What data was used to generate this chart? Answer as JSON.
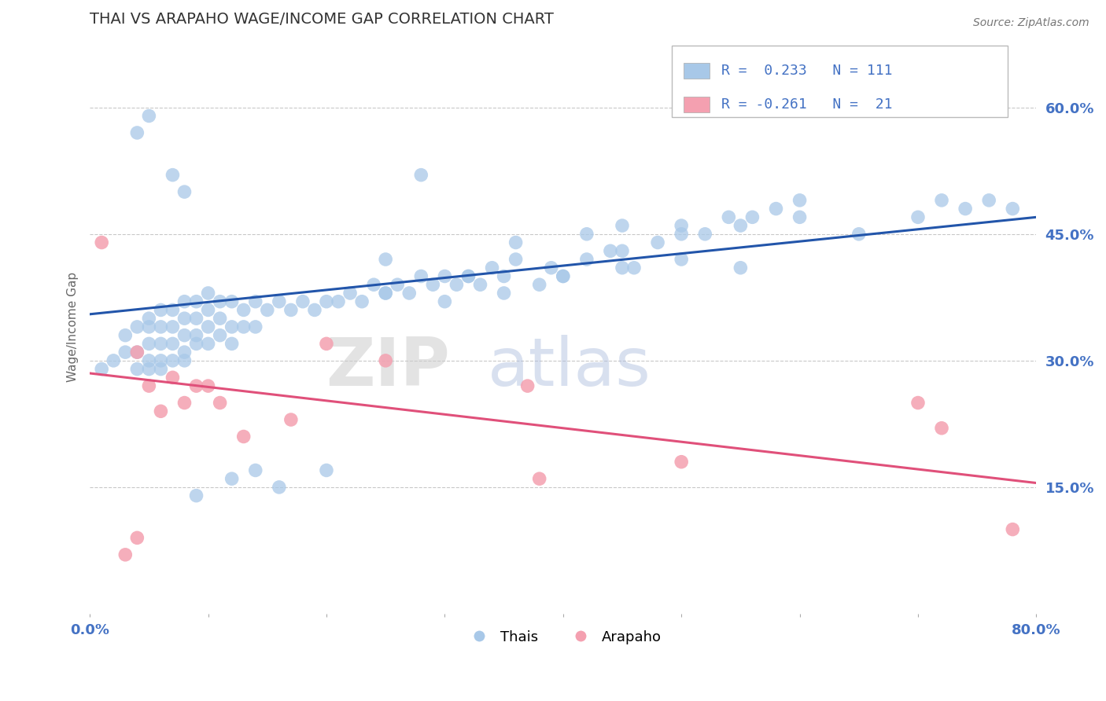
{
  "title": "THAI VS ARAPAHO WAGE/INCOME GAP CORRELATION CHART",
  "source_text": "Source: ZipAtlas.com",
  "ylabel": "Wage/Income Gap",
  "xlim": [
    0.0,
    0.8
  ],
  "ylim": [
    0.0,
    0.68
  ],
  "yticks": [
    0.15,
    0.3,
    0.45,
    0.6
  ],
  "ytick_labels": [
    "15.0%",
    "30.0%",
    "45.0%",
    "60.0%"
  ],
  "xticks": [
    0.0,
    0.1,
    0.2,
    0.3,
    0.4,
    0.5,
    0.6,
    0.7,
    0.8
  ],
  "xtick_labels": [
    "0.0%",
    "",
    "",
    "",
    "",
    "",
    "",
    "",
    "80.0%"
  ],
  "watermark_zip": "ZIP",
  "watermark_atlas": "atlas",
  "blue_color": "#a8c8e8",
  "pink_color": "#f4a0b0",
  "blue_line_color": "#2255aa",
  "pink_line_color": "#e0507a",
  "tick_label_color": "#4472c4",
  "grid_color": "#bbbbbb",
  "title_color": "#333333",
  "background_color": "#ffffff",
  "legend_box_color": "#dddddd",
  "blue_trend_y_start": 0.355,
  "blue_trend_y_end": 0.47,
  "pink_trend_y_start": 0.285,
  "pink_trend_y_end": 0.155,
  "blue_x": [
    0.01,
    0.02,
    0.03,
    0.03,
    0.04,
    0.04,
    0.04,
    0.05,
    0.05,
    0.05,
    0.05,
    0.05,
    0.06,
    0.06,
    0.06,
    0.06,
    0.06,
    0.07,
    0.07,
    0.07,
    0.07,
    0.08,
    0.08,
    0.08,
    0.08,
    0.08,
    0.09,
    0.09,
    0.09,
    0.09,
    0.1,
    0.1,
    0.1,
    0.1,
    0.11,
    0.11,
    0.11,
    0.12,
    0.12,
    0.12,
    0.13,
    0.13,
    0.14,
    0.14,
    0.15,
    0.16,
    0.17,
    0.18,
    0.19,
    0.2,
    0.21,
    0.22,
    0.23,
    0.24,
    0.25,
    0.26,
    0.27,
    0.28,
    0.29,
    0.3,
    0.31,
    0.32,
    0.33,
    0.34,
    0.35,
    0.36,
    0.38,
    0.39,
    0.4,
    0.42,
    0.44,
    0.45,
    0.46,
    0.48,
    0.5,
    0.52,
    0.54,
    0.56,
    0.58,
    0.6,
    0.04,
    0.05,
    0.07,
    0.08,
    0.09,
    0.12,
    0.14,
    0.16,
    0.2,
    0.25,
    0.28,
    0.32,
    0.36,
    0.42,
    0.45,
    0.5,
    0.55,
    0.6,
    0.65,
    0.7,
    0.72,
    0.74,
    0.76,
    0.78,
    0.25,
    0.3,
    0.35,
    0.4,
    0.45,
    0.5,
    0.55
  ],
  "blue_y": [
    0.29,
    0.3,
    0.31,
    0.33,
    0.29,
    0.31,
    0.34,
    0.29,
    0.3,
    0.32,
    0.34,
    0.35,
    0.29,
    0.3,
    0.32,
    0.34,
    0.36,
    0.3,
    0.32,
    0.34,
    0.36,
    0.3,
    0.31,
    0.33,
    0.35,
    0.37,
    0.32,
    0.33,
    0.35,
    0.37,
    0.32,
    0.34,
    0.36,
    0.38,
    0.33,
    0.35,
    0.37,
    0.32,
    0.34,
    0.37,
    0.34,
    0.36,
    0.34,
    0.37,
    0.36,
    0.37,
    0.36,
    0.37,
    0.36,
    0.37,
    0.37,
    0.38,
    0.37,
    0.39,
    0.38,
    0.39,
    0.38,
    0.4,
    0.39,
    0.4,
    0.39,
    0.4,
    0.39,
    0.41,
    0.4,
    0.42,
    0.39,
    0.41,
    0.4,
    0.42,
    0.43,
    0.43,
    0.41,
    0.44,
    0.45,
    0.45,
    0.47,
    0.47,
    0.48,
    0.49,
    0.57,
    0.59,
    0.52,
    0.5,
    0.14,
    0.16,
    0.17,
    0.15,
    0.17,
    0.42,
    0.52,
    0.4,
    0.44,
    0.45,
    0.46,
    0.46,
    0.46,
    0.47,
    0.45,
    0.47,
    0.49,
    0.48,
    0.49,
    0.48,
    0.38,
    0.37,
    0.38,
    0.4,
    0.41,
    0.42,
    0.41
  ],
  "pink_x": [
    0.01,
    0.03,
    0.04,
    0.04,
    0.05,
    0.06,
    0.07,
    0.08,
    0.09,
    0.1,
    0.11,
    0.13,
    0.17,
    0.2,
    0.25,
    0.37,
    0.38,
    0.5,
    0.7,
    0.72,
    0.78
  ],
  "pink_y": [
    0.44,
    0.07,
    0.09,
    0.31,
    0.27,
    0.24,
    0.28,
    0.25,
    0.27,
    0.27,
    0.25,
    0.21,
    0.23,
    0.32,
    0.3,
    0.27,
    0.16,
    0.18,
    0.25,
    0.22,
    0.1
  ]
}
